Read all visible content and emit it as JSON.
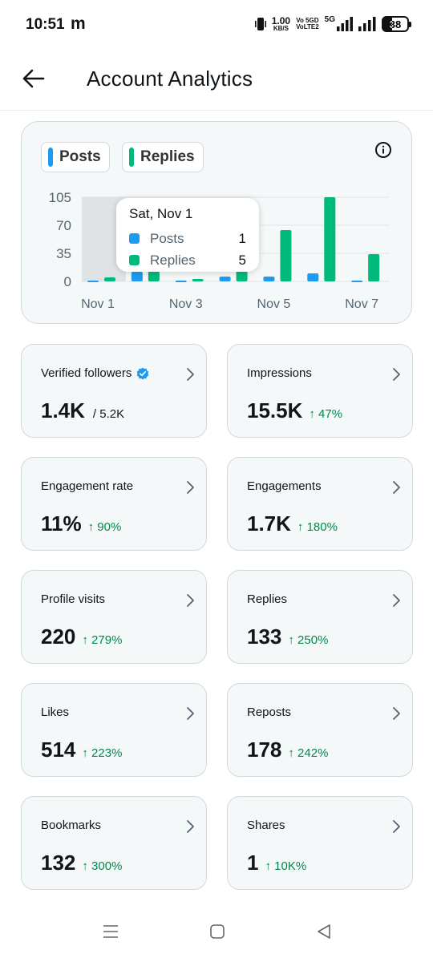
{
  "status_bar": {
    "time": "10:51",
    "carrier_glyph": "m",
    "net_speed_value": "1.00",
    "net_speed_unit": "KB/S",
    "volte_top": "Vo 5GD",
    "volte_bottom": "VoLTE2",
    "net_type": "5G",
    "battery": "38"
  },
  "header": {
    "title": "Account Analytics",
    "back_icon": "arrow-left-icon"
  },
  "chart": {
    "legend": [
      {
        "label": "Posts",
        "color": "#1d9bf0"
      },
      {
        "label": "Replies",
        "color": "#00ba7c"
      }
    ],
    "tooltip": {
      "title": "Sat, Nov 1",
      "rows": [
        {
          "label": "Posts",
          "value": "1",
          "color": "#1d9bf0"
        },
        {
          "label": "Replies",
          "value": "5",
          "color": "#00ba7c"
        }
      ]
    }
  },
  "chart_data": {
    "type": "bar",
    "categories": [
      "Nov 1",
      "Nov 2",
      "Nov 3",
      "Nov 4",
      "Nov 5",
      "Nov 6",
      "Nov 7"
    ],
    "x_tick_labels": [
      "Nov 1",
      "Nov 3",
      "Nov 5",
      "Nov 7"
    ],
    "y_ticks": [
      "105",
      "70",
      "35",
      "0"
    ],
    "ylim": [
      0,
      105
    ],
    "series": [
      {
        "name": "Posts",
        "color": "#1d9bf0",
        "values": [
          1,
          12,
          1,
          6,
          6,
          10,
          1
        ]
      },
      {
        "name": "Replies",
        "color": "#00ba7c",
        "values": [
          5,
          13,
          3,
          13,
          64,
          105,
          34
        ]
      }
    ],
    "grid": true,
    "legend": "top-left",
    "highlighted_category": "Nov 1"
  },
  "stats": [
    {
      "title": "Verified followers",
      "value": "1.4K",
      "extra": "/ 5.2K",
      "delta": "",
      "verified": true
    },
    {
      "title": "Impressions",
      "value": "15.5K",
      "extra": "",
      "delta": "↑ 47%"
    },
    {
      "title": "Engagement rate",
      "value": "11%",
      "extra": "",
      "delta": "↑ 90%"
    },
    {
      "title": "Engagements",
      "value": "1.7K",
      "extra": "",
      "delta": "↑ 180%"
    },
    {
      "title": "Profile visits",
      "value": "220",
      "extra": "",
      "delta": "↑ 279%"
    },
    {
      "title": "Replies",
      "value": "133",
      "extra": "",
      "delta": "↑ 250%"
    },
    {
      "title": "Likes",
      "value": "514",
      "extra": "",
      "delta": "↑ 223%"
    },
    {
      "title": "Reposts",
      "value": "178",
      "extra": "",
      "delta": "↑ 242%"
    },
    {
      "title": "Bookmarks",
      "value": "132",
      "extra": "",
      "delta": "↑ 300%"
    },
    {
      "title": "Shares",
      "value": "1",
      "extra": "",
      "delta": "↑ 10K%"
    }
  ],
  "nav": {
    "items": [
      "menu-icon",
      "home-square-icon",
      "back-triangle-icon"
    ]
  }
}
